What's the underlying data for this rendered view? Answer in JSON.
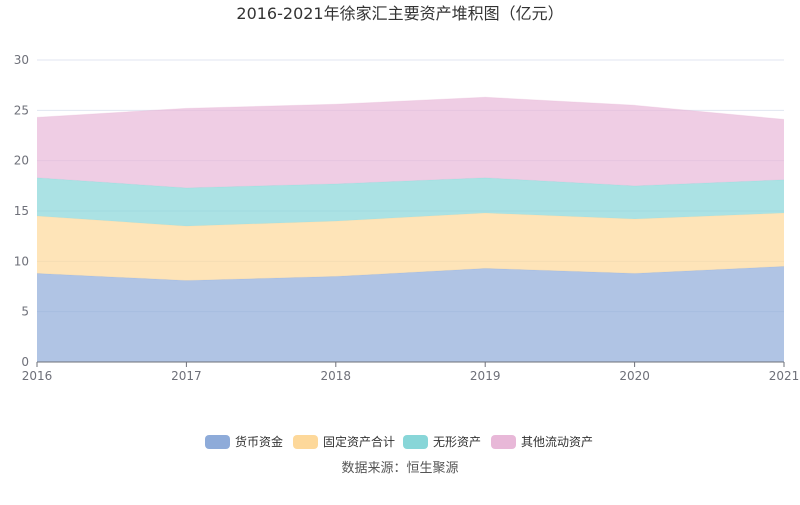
{
  "chart_data": {
    "type": "area",
    "stacked": true,
    "title": "2016-2021年徐家汇主要资产堆积图（亿元）",
    "source": "数据来源：恒生聚源",
    "x": [
      "2016",
      "2017",
      "2018",
      "2019",
      "2020",
      "2021"
    ],
    "ylim": [
      0,
      30
    ],
    "yticks": [
      0,
      5,
      10,
      15,
      20,
      25,
      30
    ],
    "grid": true,
    "legend_position": "bottom",
    "series": [
      {
        "name": "货币资金",
        "color": "#8eabd9",
        "values": [
          8.8,
          8.1,
          8.5,
          9.3,
          8.8,
          9.5
        ]
      },
      {
        "name": "固定资产合计",
        "color": "#fdd89a",
        "values": [
          5.7,
          5.4,
          5.5,
          5.5,
          5.4,
          5.3
        ]
      },
      {
        "name": "无形资产",
        "color": "#88d6d8",
        "values": [
          3.8,
          3.8,
          3.7,
          3.5,
          3.3,
          3.3
        ]
      },
      {
        "name": "其他流动资产",
        "color": "#e8b8d8",
        "values": [
          6.0,
          7.9,
          7.9,
          8.0,
          8.0,
          6.0
        ]
      }
    ]
  }
}
